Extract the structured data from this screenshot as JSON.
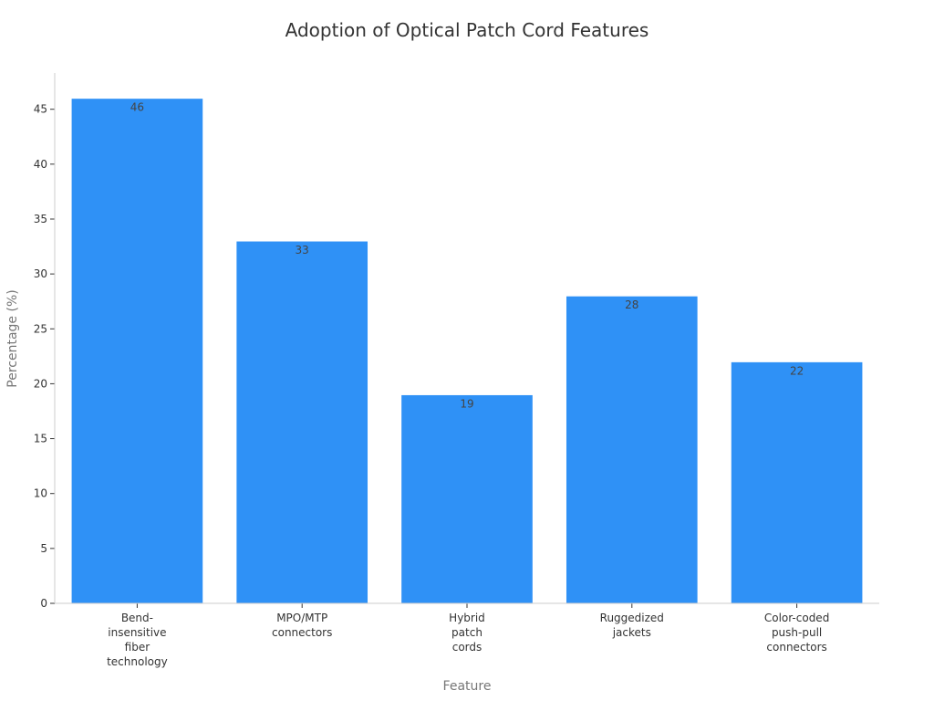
{
  "chart_data": {
    "type": "bar",
    "title": "Adoption of Optical Patch Cord Features",
    "xlabel": "Feature",
    "ylabel": "Percentage (%)",
    "categories": [
      "Bend-insensitive fiber technology",
      "MPO/MTP connectors",
      "Hybrid patch cords",
      "Ruggedized jackets",
      "Color-coded push-pull connectors"
    ],
    "category_lines": [
      [
        "Bend-",
        "insensitive",
        "fiber",
        "technology"
      ],
      [
        "MPO/MTP",
        "connectors"
      ],
      [
        "Hybrid",
        "patch",
        "cords"
      ],
      [
        "Ruggedized",
        "jackets"
      ],
      [
        "Color-coded",
        "push-pull",
        "connectors"
      ]
    ],
    "values": [
      46,
      33,
      19,
      28,
      22
    ],
    "yticks": [
      0,
      5,
      10,
      15,
      20,
      25,
      30,
      35,
      40,
      45
    ],
    "ylim": [
      0,
      48.3
    ],
    "grid": false,
    "bar_color": "#2f91f6"
  }
}
